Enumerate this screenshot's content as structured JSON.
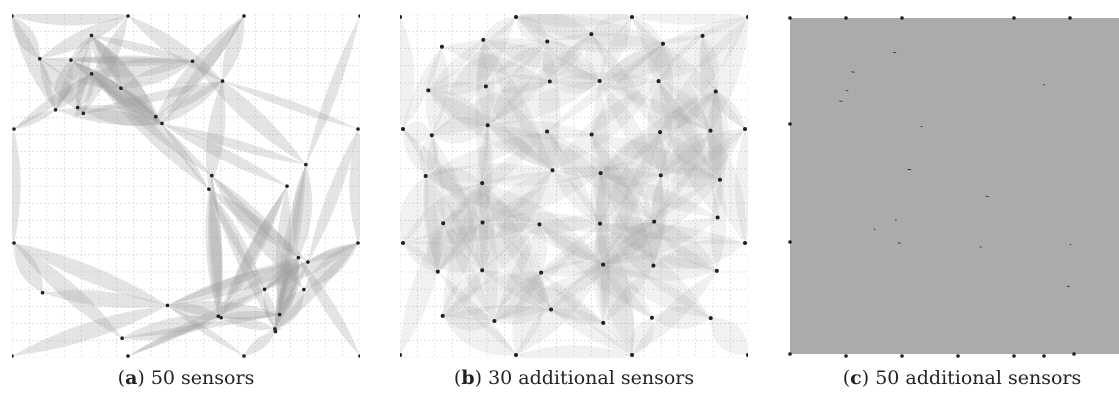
{
  "panels": [
    {
      "id": "a",
      "letter": "a",
      "caption": "50 sensors"
    },
    {
      "id": "b",
      "letter": "b",
      "caption": "30 additional sensors"
    },
    {
      "id": "c",
      "letter": "c",
      "caption": "50 additional sensors"
    }
  ],
  "colors": {
    "coverage_fill": "#9e9e9e",
    "grid": "#cfcfcf",
    "sensor": "#222222",
    "full_coverage": "#ababab"
  }
}
